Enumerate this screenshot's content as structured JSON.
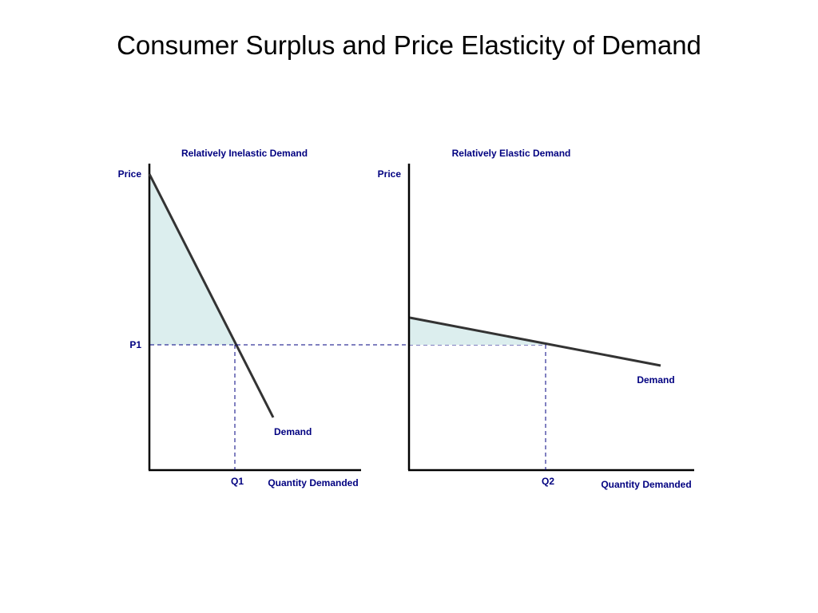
{
  "title": "Consumer Surplus and Price Elasticity of Demand",
  "colors": {
    "label": "#000080",
    "curve": "#333333",
    "axis": "#000000",
    "surplus_fill": "#DCEEEE",
    "guide": "#000080"
  },
  "panels": [
    {
      "heading": "Relatively Inelastic Demand",
      "y_axis_label": "Price",
      "x_axis_label": "Quantity Demanded",
      "curve_label": "Demand",
      "price_label": "P1",
      "quantity_label": "Q1"
    },
    {
      "heading": "Relatively Elastic Demand",
      "y_axis_label": "Price",
      "x_axis_label": "Quantity Demanded",
      "curve_label": "Demand",
      "quantity_label": "Q2"
    }
  ]
}
